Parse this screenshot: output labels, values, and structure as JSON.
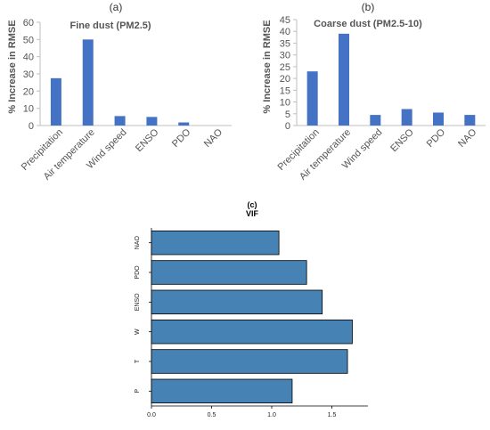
{
  "chart_data": [
    {
      "type": "bar",
      "panel": "(a)",
      "title": "Fine dust (PM2.5)",
      "ylabel": "% Increase in RMSE",
      "categories": [
        "Precipitation",
        "Air temperature",
        "Wind speed",
        "ENSO",
        "PDO",
        "NAO"
      ],
      "values": [
        27.5,
        50,
        5.5,
        5,
        1.8,
        0
      ],
      "ylim": [
        0,
        60
      ],
      "yticks": [
        0,
        10,
        20,
        30,
        40,
        50,
        60
      ],
      "color": "#4472C4",
      "grid": false
    },
    {
      "type": "bar",
      "panel": "(b)",
      "title": "Coarse dust (PM2.5-10)",
      "ylabel": "% Increase in RMSE",
      "categories": [
        "Precipitation",
        "Air temperature",
        "Wind speed",
        "ENSO",
        "PDO",
        "NAO"
      ],
      "values": [
        23,
        39,
        4.5,
        7,
        5.5,
        4.5
      ],
      "ylim": [
        0,
        45
      ],
      "yticks": [
        0,
        5,
        10,
        15,
        20,
        25,
        30,
        35,
        40,
        45
      ],
      "color": "#4472C4",
      "grid": false
    },
    {
      "type": "bar",
      "orientation": "horizontal",
      "panel": "(c)",
      "title": "VIF",
      "categories": [
        "P",
        "T",
        "W",
        "ENSO",
        "PDO",
        "NAO"
      ],
      "values": [
        1.17,
        1.63,
        1.67,
        1.42,
        1.29,
        1.06
      ],
      "xlim": [
        0,
        1.8
      ],
      "xticks": [
        "0.0",
        "0.5",
        "1.0",
        "1.5"
      ],
      "color": "#4682B4",
      "grid": false
    }
  ]
}
